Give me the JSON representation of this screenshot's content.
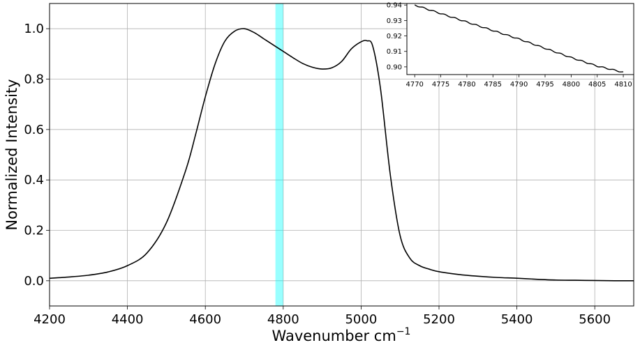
{
  "chart_data": [
    {
      "type": "line",
      "xlabel": "Wavenumber cm",
      "xlabel_superscript": "−1",
      "ylabel": "Normalized Intensity",
      "xlim": [
        4200,
        5700
      ],
      "ylim": [
        -0.1,
        1.1
      ],
      "grid": true,
      "xticks": [
        "4200",
        "4400",
        "4600",
        "4800",
        "5000",
        "5200",
        "5400",
        "5600"
      ],
      "yticks": [
        "0.0",
        "0.2",
        "0.4",
        "0.6",
        "0.8",
        "1.0"
      ],
      "highlight_band": {
        "x_start": 4780,
        "x_end": 4800,
        "color": "#00ffff"
      },
      "series": [
        {
          "color": "#000000",
          "x": [
            4200,
            4250,
            4300,
            4350,
            4400,
            4450,
            4500,
            4550,
            4575,
            4600,
            4625,
            4650,
            4675,
            4700,
            4725,
            4750,
            4775,
            4800,
            4825,
            4850,
            4875,
            4900,
            4925,
            4950,
            4975,
            5000,
            5015,
            5030,
            5050,
            5075,
            5100,
            5125,
            5150,
            5175,
            5200,
            5250,
            5300,
            5350,
            5400,
            5450,
            5500,
            5550,
            5600,
            5650,
            5700
          ],
          "y": [
            0.01,
            0.015,
            0.022,
            0.035,
            0.06,
            0.11,
            0.23,
            0.44,
            0.58,
            0.73,
            0.86,
            0.95,
            0.99,
            1.0,
            0.985,
            0.96,
            0.935,
            0.91,
            0.885,
            0.862,
            0.847,
            0.84,
            0.845,
            0.87,
            0.92,
            0.948,
            0.952,
            0.93,
            0.76,
            0.42,
            0.18,
            0.09,
            0.06,
            0.046,
            0.036,
            0.025,
            0.018,
            0.013,
            0.01,
            0.006,
            0.003,
            0.002,
            0.001,
            0.0,
            0.0
          ]
        }
      ]
    },
    {
      "type": "line",
      "xlim": [
        4768.5,
        4812
      ],
      "ylim": [
        0.895,
        0.941
      ],
      "grid": false,
      "xticks": [
        "4770",
        "4775",
        "4780",
        "4785",
        "4790",
        "4795",
        "4800",
        "4805",
        "4810"
      ],
      "yticks": [
        "0.90",
        "0.91",
        "0.92",
        "0.93",
        "0.94"
      ],
      "series": [
        {
          "color": "#000000",
          "x": [
            4770,
            4775,
            4780,
            4785,
            4790,
            4795,
            4800,
            4805,
            4810
          ],
          "y": [
            0.94,
            0.9345,
            0.929,
            0.9235,
            0.918,
            0.912,
            0.906,
            0.9005,
            0.8965
          ]
        }
      ]
    }
  ]
}
